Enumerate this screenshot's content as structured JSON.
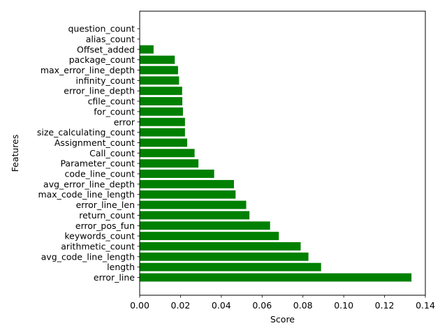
{
  "chart_data": {
    "type": "bar",
    "orientation": "horizontal",
    "xlabel": "Score",
    "ylabel": "Features",
    "xlim": [
      0,
      0.14
    ],
    "x_ticks": [
      "0.00",
      "0.02",
      "0.04",
      "0.06",
      "0.08",
      "0.10",
      "0.12",
      "0.14"
    ],
    "x_tick_values": [
      0,
      0.02,
      0.04,
      0.06,
      0.08,
      0.1,
      0.12,
      0.14
    ],
    "bar_color": "#008000",
    "grid": false,
    "categories": [
      "error_line",
      "length",
      "avg_code_line_length",
      "arithmetic_count",
      "keywords_count",
      "error_pos_fun",
      "return_count",
      "error_line_len",
      "max_code_line_length",
      "avg_error_line_depth",
      "code_line_count",
      "Parameter_count",
      "Call_count",
      "Assignment_count",
      "size_calculating_count",
      "error",
      "for_count",
      "cfile_count",
      "error_line_depth",
      "infinity_count",
      "max_error_line_depth",
      "package_count",
      "Offset_added",
      "alias_count",
      "question_count"
    ],
    "values": [
      0.1332,
      0.0889,
      0.0827,
      0.0789,
      0.0682,
      0.0639,
      0.0538,
      0.0522,
      0.047,
      0.0462,
      0.0365,
      0.0288,
      0.0269,
      0.0233,
      0.0222,
      0.0222,
      0.0212,
      0.0209,
      0.0208,
      0.0193,
      0.0188,
      0.0172,
      0.0068,
      0.0,
      0.0
    ]
  }
}
